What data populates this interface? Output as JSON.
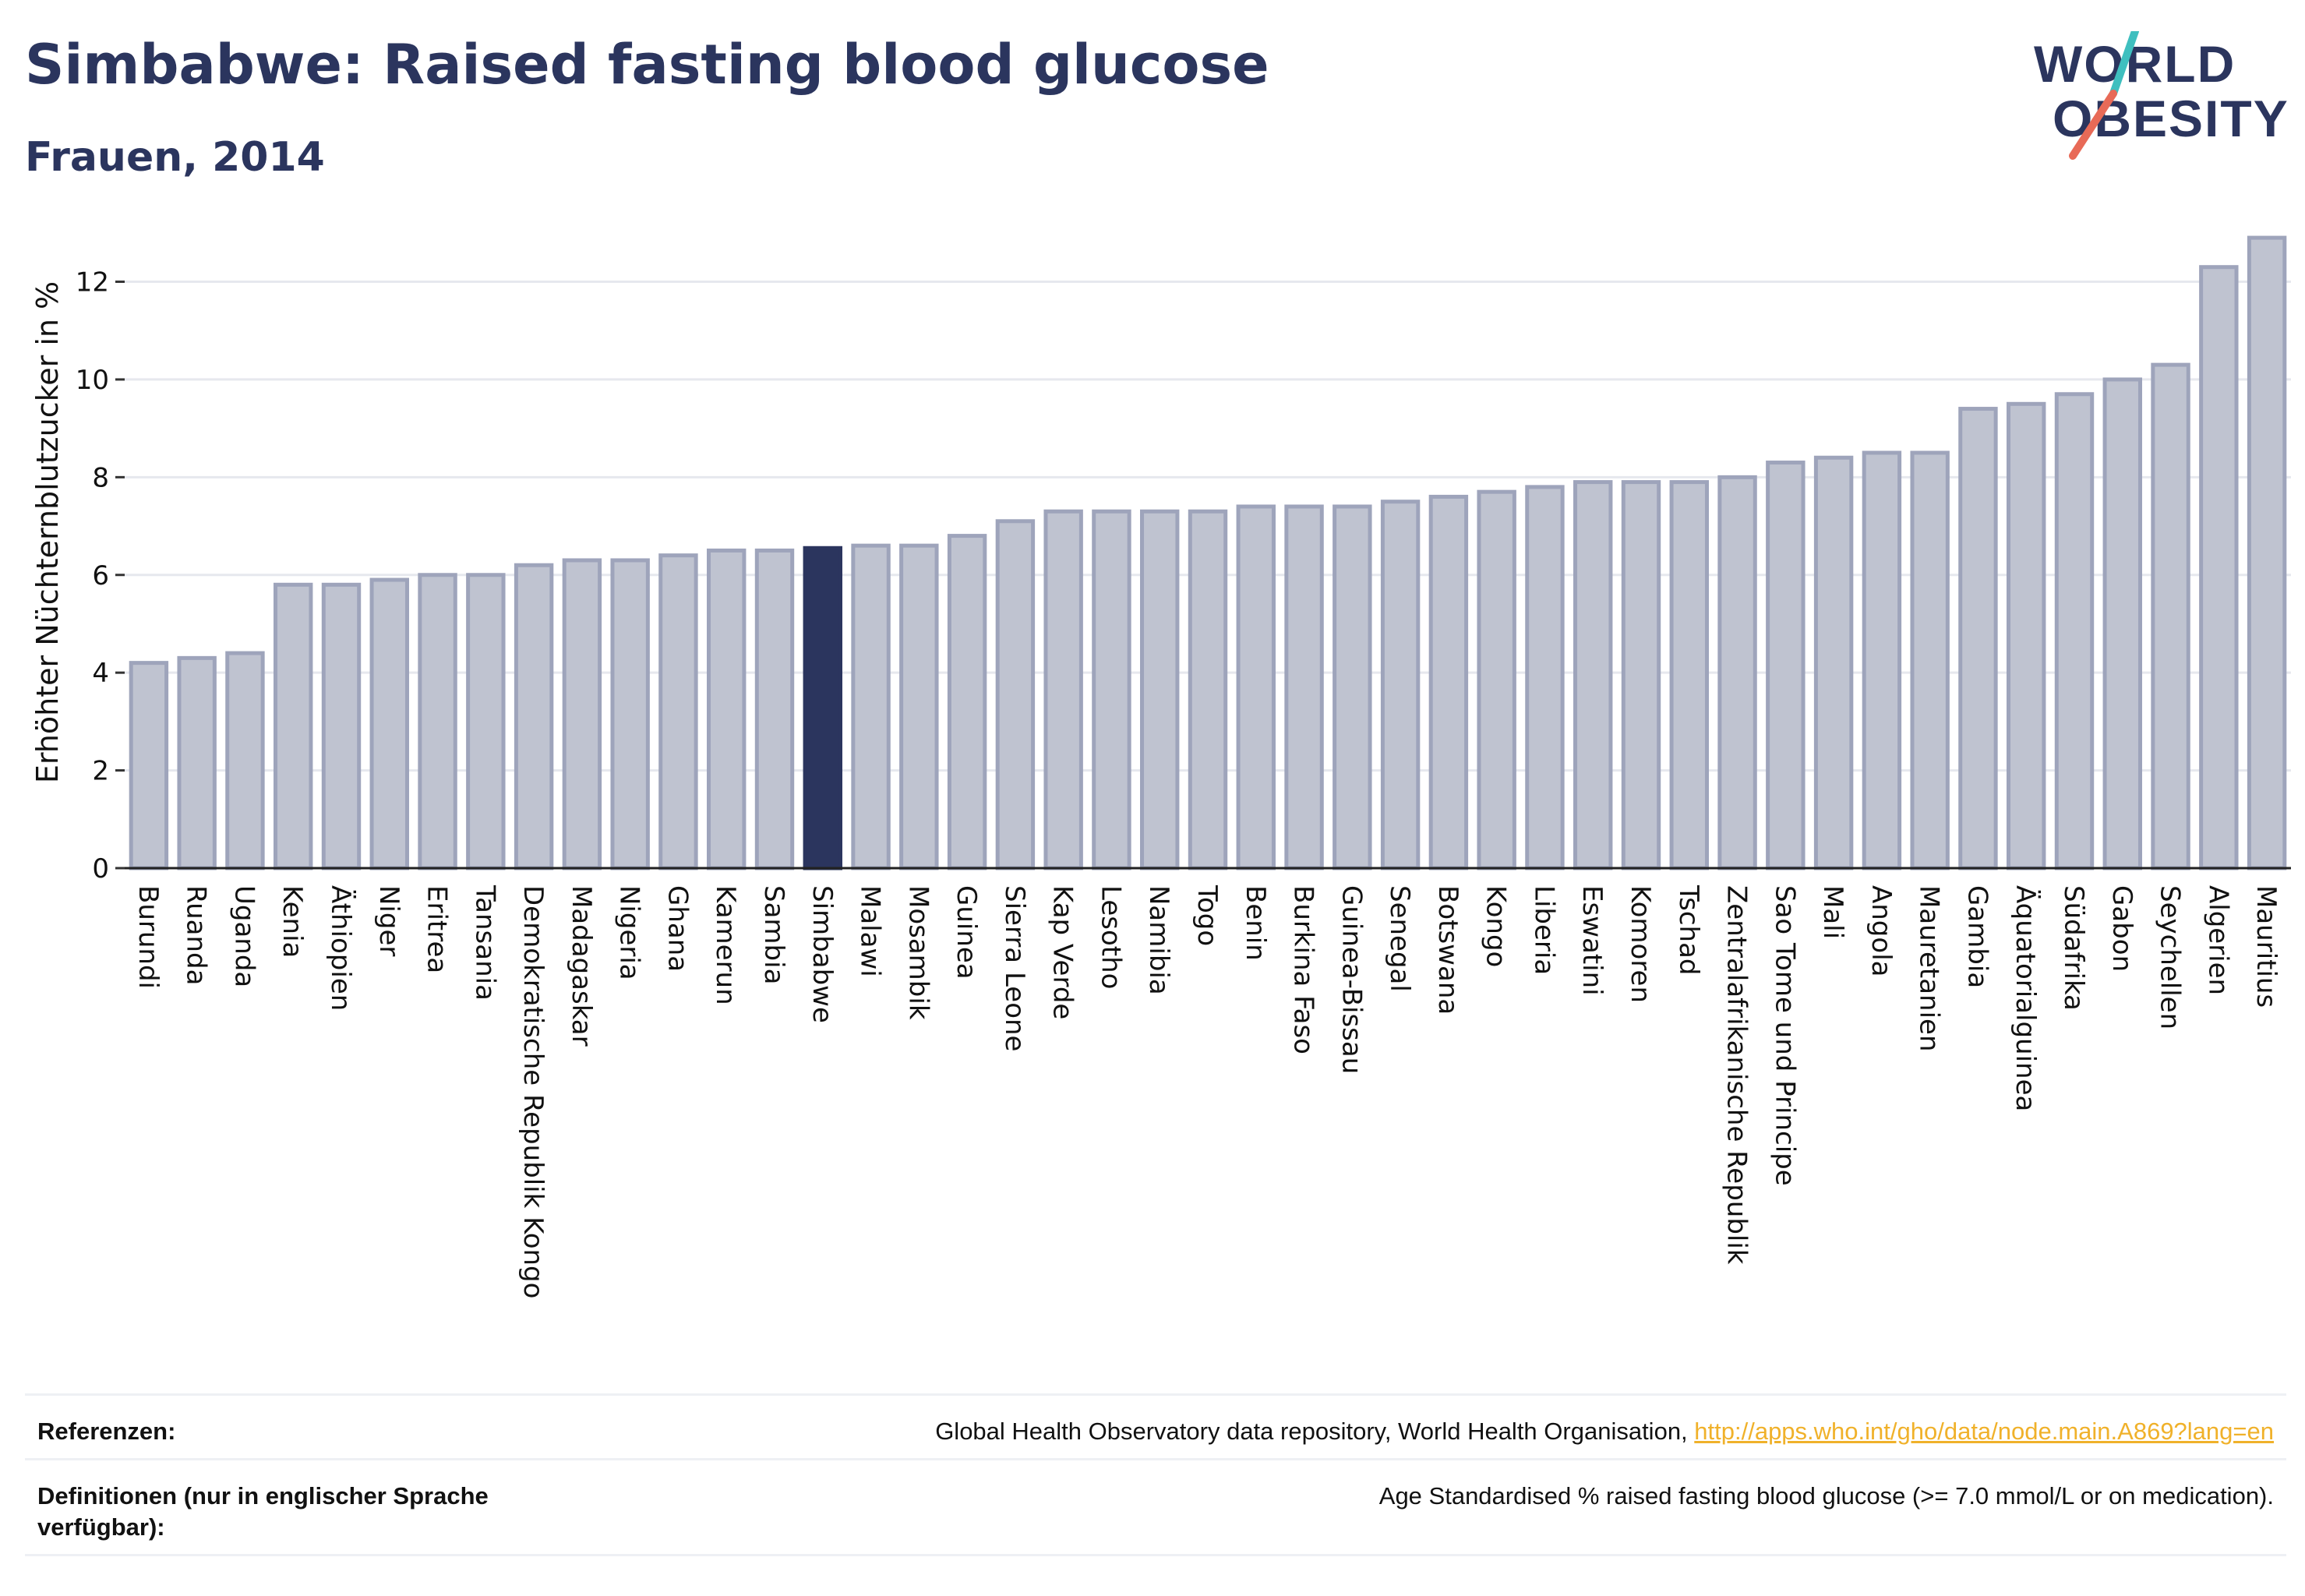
{
  "header": {
    "title": "Simbabwe: Raised fasting blood glucose",
    "subtitle": "Frauen, 2014"
  },
  "logo": {
    "line1": "WORLD",
    "line2": "OBESITY",
    "colors": {
      "text": "#2b355e",
      "slash_teal": "#3fbfbf",
      "slash_coral": "#e86a57"
    }
  },
  "chart_data": {
    "type": "bar",
    "title": "",
    "ylabel": "Erhöhter Nüchternblutzucker in %",
    "xlabel": "",
    "ylim": [
      0,
      13.3
    ],
    "yticks": [
      0,
      2,
      4,
      6,
      8,
      10,
      12
    ],
    "grid": true,
    "highlight": "Simbabwe",
    "colors": {
      "bar": "#bfc3d0",
      "bar_edge": "#9ea4bb",
      "highlight": "#2b355e",
      "grid": "#e6e8ee"
    },
    "categories": [
      "Burundi",
      "Ruanda",
      "Uganda",
      "Kenia",
      "Äthiopien",
      "Niger",
      "Eritrea",
      "Tansania",
      "Demokratische Republik Kongo",
      "Madagaskar",
      "Nigeria",
      "Ghana",
      "Kamerun",
      "Sambia",
      "Simbabwe",
      "Malawi",
      "Mosambik",
      "Guinea",
      "Sierra Leone",
      "Kap Verde",
      "Lesotho",
      "Namibia",
      "Togo",
      "Benin",
      "Burkina Faso",
      "Guinea-Bissau",
      "Senegal",
      "Botswana",
      "Kongo",
      "Liberia",
      "Eswatini",
      "Komoren",
      "Tschad",
      "Zentralafrikanische Republik",
      "Sao Tome und Principe",
      "Mali",
      "Angola",
      "Mauretanien",
      "Gambia",
      "Äquatorialguinea",
      "Südafrika",
      "Gabon",
      "Seychellen",
      "Algerien",
      "Mauritius"
    ],
    "values": [
      4.2,
      4.3,
      4.4,
      5.8,
      5.8,
      5.9,
      6.0,
      6.0,
      6.2,
      6.3,
      6.3,
      6.4,
      6.5,
      6.5,
      6.55,
      6.6,
      6.6,
      6.8,
      7.1,
      7.3,
      7.3,
      7.3,
      7.3,
      7.4,
      7.4,
      7.4,
      7.5,
      7.6,
      7.7,
      7.8,
      7.9,
      7.9,
      7.9,
      8.0,
      8.3,
      8.4,
      8.5,
      8.5,
      9.4,
      9.5,
      9.7,
      10.0,
      10.3,
      12.3,
      12.9
    ]
  },
  "references": {
    "refs_label": "Referenzen:",
    "refs_text": "Global Health Observatory data repository, World Health Organisation, ",
    "refs_link": "http://apps.who.int/gho/data/node.main.A869?lang=en",
    "defs_label": "Definitionen (nur in englischer Sprache verfügbar):",
    "defs_text": "Age Standardised % raised fasting blood glucose (>= 7.0 mmol/L or on medication)."
  }
}
